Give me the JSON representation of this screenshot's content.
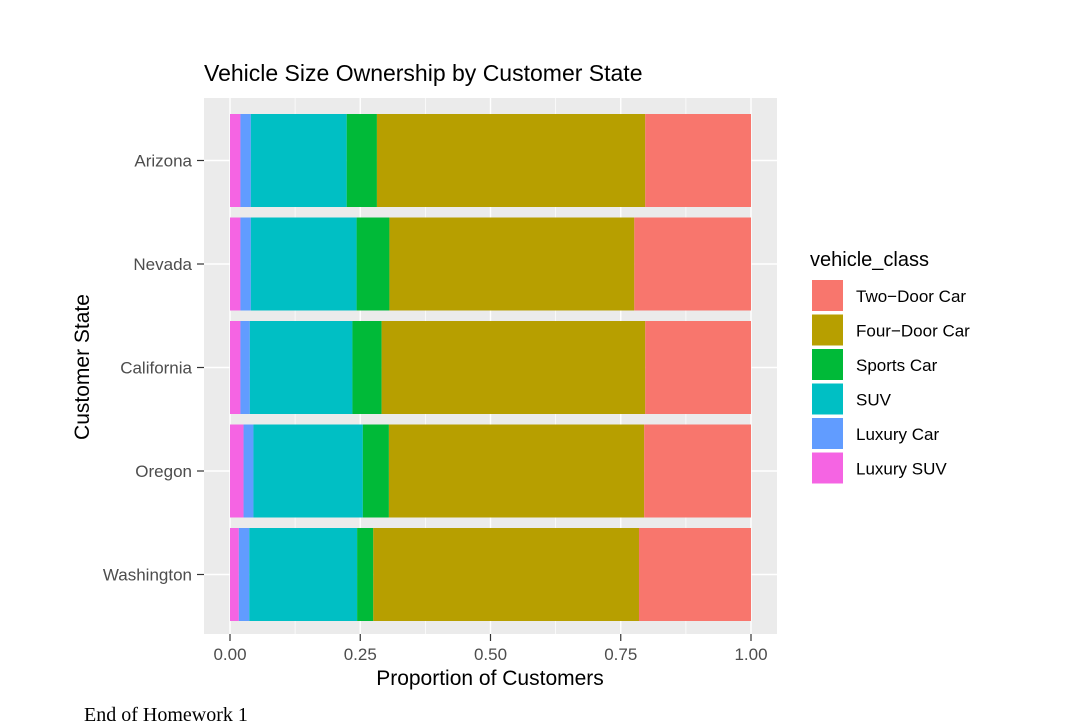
{
  "footer_text": "End of Homework 1",
  "chart_data": {
    "type": "bar",
    "orientation": "horizontal",
    "stacked": "fill",
    "title": "Vehicle Size Ownership by Customer State",
    "xlabel": "Proportion of Customers",
    "ylabel": "Customer State",
    "xlim": [
      0,
      1
    ],
    "x_ticks": [
      "0.00",
      "0.25",
      "0.50",
      "0.75",
      "1.00"
    ],
    "grid": true,
    "legend_title": "vehicle_class",
    "legend_position": "right",
    "categories": [
      "Arizona",
      "Nevada",
      "California",
      "Oregon",
      "Washington"
    ],
    "series": [
      {
        "name": "Luxury SUV",
        "color": "#F564E3",
        "values": [
          0.02,
          0.02,
          0.02,
          0.026,
          0.017
        ]
      },
      {
        "name": "Luxury Car",
        "color": "#619CFF",
        "values": [
          0.02,
          0.02,
          0.018,
          0.019,
          0.02
        ]
      },
      {
        "name": "SUV",
        "color": "#00BFC4",
        "values": [
          0.184,
          0.203,
          0.197,
          0.21,
          0.207
        ]
      },
      {
        "name": "Sports Car",
        "color": "#00BA38",
        "values": [
          0.058,
          0.063,
          0.056,
          0.05,
          0.031
        ]
      },
      {
        "name": "Four−Door Car",
        "color": "#B79F00",
        "values": [
          0.515,
          0.47,
          0.506,
          0.49,
          0.51
        ]
      },
      {
        "name": "Two−Door Car",
        "color": "#F8766D",
        "values": [
          0.203,
          0.224,
          0.203,
          0.205,
          0.215
        ]
      }
    ],
    "legend_order": [
      "Two−Door Car",
      "Four−Door Car",
      "Sports Car",
      "SUV",
      "Luxury Car",
      "Luxury SUV"
    ]
  }
}
